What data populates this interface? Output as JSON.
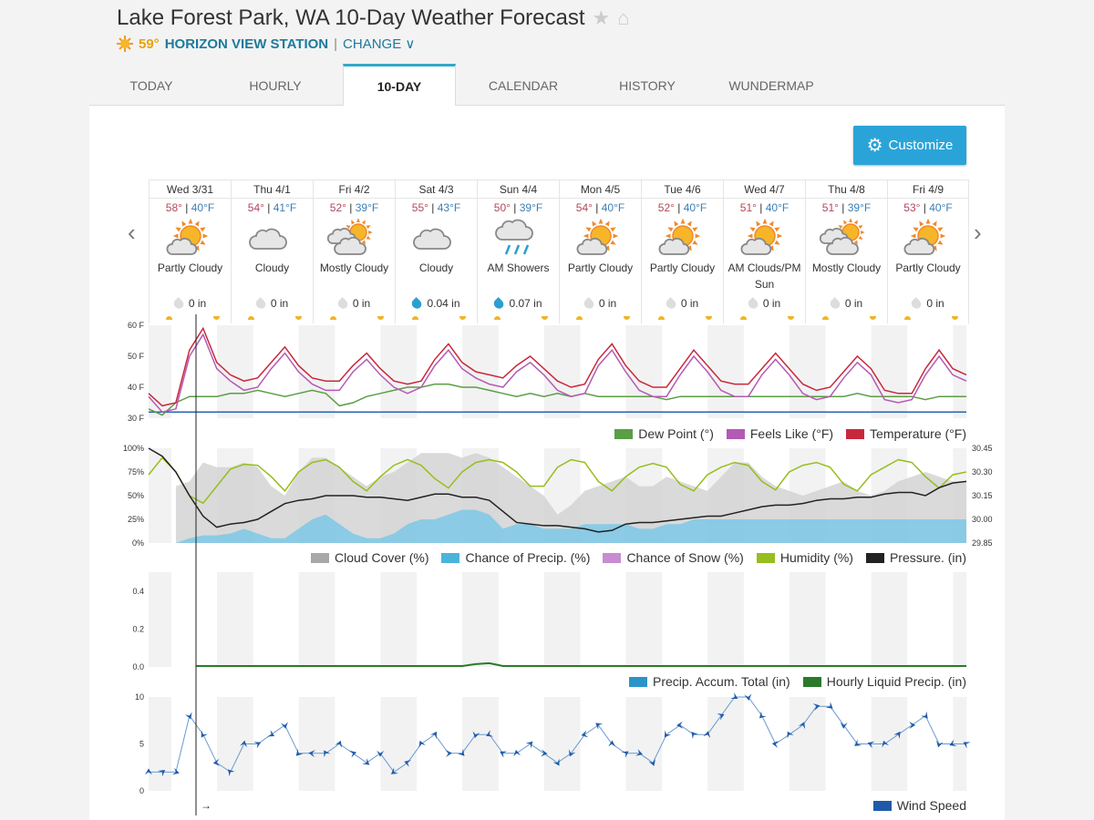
{
  "header": {
    "title": "Lake Forest Park, WA 10-Day Weather Forecast",
    "current_temp": "59°",
    "station": "HORIZON VIEW STATION",
    "separator": "|",
    "change": "CHANGE"
  },
  "tabs": [
    {
      "label": "TODAY"
    },
    {
      "label": "HOURLY"
    },
    {
      "label": "10-DAY",
      "active": true
    },
    {
      "label": "CALENDAR"
    },
    {
      "label": "HISTORY"
    },
    {
      "label": "WUNDERMAP"
    }
  ],
  "customize_label": "Customize",
  "days": [
    {
      "name": "Wed 3/31",
      "hi": "58°",
      "lo": "40°F",
      "icon": "partly-cloudy",
      "cond": "Partly Cloudy",
      "precip": "0 in",
      "wet": false
    },
    {
      "name": "Thu 4/1",
      "hi": "54°",
      "lo": "41°F",
      "icon": "cloudy",
      "cond": "Cloudy",
      "precip": "0 in",
      "wet": false
    },
    {
      "name": "Fri 4/2",
      "hi": "52°",
      "lo": "39°F",
      "icon": "mostly-cloudy",
      "cond": "Mostly Cloudy",
      "precip": "0 in",
      "wet": false
    },
    {
      "name": "Sat 4/3",
      "hi": "55°",
      "lo": "43°F",
      "icon": "cloudy",
      "cond": "Cloudy",
      "precip": "0.04 in",
      "wet": true
    },
    {
      "name": "Sun 4/4",
      "hi": "50°",
      "lo": "39°F",
      "icon": "rain",
      "cond": "AM Showers",
      "precip": "0.07 in",
      "wet": true
    },
    {
      "name": "Mon 4/5",
      "hi": "54°",
      "lo": "40°F",
      "icon": "partly-cloudy",
      "cond": "Partly Cloudy",
      "precip": "0 in",
      "wet": false
    },
    {
      "name": "Tue 4/6",
      "hi": "52°",
      "lo": "40°F",
      "icon": "partly-cloudy",
      "cond": "Partly Cloudy",
      "precip": "0 in",
      "wet": false
    },
    {
      "name": "Wed 4/7",
      "hi": "51°",
      "lo": "40°F",
      "icon": "partly-cloudy",
      "cond": "AM Clouds/PM Sun",
      "precip": "0 in",
      "wet": false
    },
    {
      "name": "Thu 4/8",
      "hi": "51°",
      "lo": "39°F",
      "icon": "mostly-cloudy",
      "cond": "Mostly Cloudy",
      "precip": "0 in",
      "wet": false
    },
    {
      "name": "Fri 4/9",
      "hi": "53°",
      "lo": "40°F",
      "icon": "partly-cloudy",
      "cond": "Partly Cloudy",
      "precip": "0 in",
      "wet": false
    }
  ],
  "colors": {
    "temperature": "#c8283c",
    "feels_like": "#b45ab4",
    "dew_point": "#5a9e46",
    "freezing": "#2a64b0",
    "cloud": "#c8c8c8",
    "precip": "#4ab4dc",
    "snow": "#c88cd2",
    "humidity": "#96be1e",
    "pressure": "#222222",
    "accum": "#2a94c8",
    "liquid": "#2a7a2a",
    "wind": "#1f5aa8"
  },
  "chart_data": [
    {
      "type": "line",
      "id": "temp",
      "ylim": [
        30,
        60
      ],
      "yticks": [
        "60 F",
        "50 F",
        "40 F",
        "30 F"
      ],
      "ytick_values": [
        60,
        50,
        40,
        30
      ],
      "points_per_day": 6,
      "series": [
        {
          "name": "Temperature (°F)",
          "values": [
            38,
            34,
            35,
            52,
            59,
            48,
            44,
            42,
            43,
            48,
            53,
            47,
            43,
            42,
            42,
            47,
            51,
            46,
            42,
            41,
            42,
            49,
            54,
            48,
            45,
            44,
            43,
            47,
            50,
            46,
            42,
            40,
            41,
            49,
            54,
            47,
            42,
            40,
            40,
            46,
            52,
            47,
            42,
            41,
            41,
            46,
            51,
            46,
            41,
            39,
            40,
            45,
            50,
            46,
            39,
            38,
            38,
            46,
            52,
            46,
            44
          ]
        },
        {
          "name": "Feels Like (°F)",
          "values": [
            37,
            32,
            33,
            50,
            57,
            46,
            42,
            39,
            40,
            46,
            51,
            45,
            41,
            39,
            39,
            45,
            49,
            44,
            40,
            38,
            40,
            47,
            52,
            46,
            43,
            41,
            40,
            45,
            48,
            44,
            39,
            37,
            38,
            47,
            52,
            45,
            39,
            37,
            37,
            44,
            50,
            45,
            39,
            37,
            37,
            44,
            49,
            44,
            38,
            36,
            37,
            43,
            48,
            44,
            36,
            35,
            36,
            44,
            50,
            44,
            42
          ]
        },
        {
          "name": "Dew Point (°)",
          "values": [
            33,
            31,
            35,
            37,
            37,
            37,
            38,
            38,
            39,
            38,
            37,
            38,
            39,
            38,
            34,
            35,
            37,
            38,
            39,
            40,
            40,
            41,
            41,
            40,
            40,
            39,
            38,
            37,
            38,
            37,
            38,
            37,
            38,
            37,
            37,
            37,
            37,
            37,
            36,
            37,
            37,
            37,
            37,
            37,
            37,
            37,
            37,
            37,
            37,
            37,
            37,
            37,
            38,
            37,
            37,
            37,
            37,
            36,
            37,
            37,
            37
          ]
        },
        {
          "name": "Freezing",
          "values": [
            32,
            32
          ]
        }
      ]
    },
    {
      "type": "area+line",
      "id": "atmo",
      "ylim": [
        0,
        100
      ],
      "yticks": [
        "100%",
        "75%",
        "50%",
        "25%",
        "0%"
      ],
      "y2lim": [
        29.85,
        30.45
      ],
      "y2ticks": [
        "30.45",
        "30.30",
        "30.15",
        "30.00",
        "29.85"
      ],
      "points_per_day": 6,
      "series": [
        {
          "name": "Cloud Cover (%)",
          "values": [
            0,
            0,
            60,
            65,
            85,
            80,
            80,
            85,
            80,
            60,
            50,
            75,
            90,
            90,
            80,
            70,
            60,
            70,
            75,
            85,
            95,
            95,
            95,
            90,
            95,
            90,
            80,
            70,
            60,
            50,
            30,
            40,
            55,
            60,
            65,
            70,
            60,
            60,
            70,
            65,
            60,
            55,
            70,
            85,
            85,
            70,
            60,
            55,
            50,
            55,
            60,
            65,
            55,
            50,
            55,
            65,
            70,
            75,
            70,
            65,
            65
          ]
        },
        {
          "name": "Chance of Precip. (%)",
          "values": [
            0,
            0,
            0,
            5,
            8,
            8,
            10,
            15,
            10,
            5,
            5,
            15,
            25,
            30,
            20,
            10,
            5,
            5,
            10,
            20,
            25,
            25,
            30,
            35,
            35,
            30,
            15,
            20,
            20,
            15,
            15,
            15,
            20,
            20,
            20,
            20,
            15,
            15,
            20,
            20,
            25,
            25,
            25,
            25,
            25,
            25,
            25,
            25,
            25,
            25,
            25,
            25,
            25,
            25,
            25,
            25,
            25,
            25,
            25,
            25,
            25
          ]
        },
        {
          "name": "Chance of Snow (%)",
          "values": [
            0
          ]
        },
        {
          "name": "Humidity (%)",
          "values": [
            72,
            90,
            75,
            50,
            42,
            60,
            78,
            83,
            82,
            70,
            55,
            75,
            85,
            88,
            80,
            65,
            55,
            70,
            82,
            88,
            82,
            68,
            58,
            75,
            85,
            88,
            85,
            75,
            60,
            60,
            80,
            88,
            85,
            65,
            55,
            70,
            80,
            84,
            80,
            62,
            55,
            72,
            80,
            85,
            82,
            65,
            56,
            75,
            82,
            85,
            80,
            62,
            55,
            72,
            80,
            88,
            85,
            70,
            58,
            72,
            75
          ]
        },
        {
          "name": "Pressure. (in)",
          "axis": "right",
          "values": [
            30.45,
            30.4,
            30.3,
            30.15,
            30.02,
            29.95,
            29.97,
            29.98,
            30.0,
            30.05,
            30.1,
            30.12,
            30.13,
            30.15,
            30.15,
            30.15,
            30.14,
            30.14,
            30.13,
            30.12,
            30.14,
            30.16,
            30.16,
            30.14,
            30.14,
            30.12,
            30.05,
            29.98,
            29.97,
            29.96,
            29.96,
            29.95,
            29.94,
            29.92,
            29.93,
            29.97,
            29.98,
            29.98,
            29.99,
            30.0,
            30.01,
            30.02,
            30.02,
            30.04,
            30.06,
            30.08,
            30.09,
            30.09,
            30.1,
            30.12,
            30.13,
            30.13,
            30.14,
            30.14,
            30.16,
            30.17,
            30.17,
            30.15,
            30.2,
            30.23,
            30.24
          ]
        }
      ]
    },
    {
      "type": "line",
      "id": "precip",
      "ylim": [
        0,
        0.5
      ],
      "yticks": [
        "0.4",
        "0.2",
        "0.0"
      ],
      "ytick_values": [
        0.4,
        0.2,
        0
      ],
      "points_per_day": 6,
      "series": [
        {
          "name": "Precip. Accum. Total (in)",
          "values": [
            0,
            0
          ]
        },
        {
          "name": "Hourly Liquid Precip. (in)",
          "values": [
            0,
            0,
            0,
            0,
            0,
            0,
            0,
            0,
            0,
            0,
            0,
            0,
            0,
            0,
            0,
            0,
            0,
            0,
            0,
            0,
            0,
            0,
            0,
            0,
            0.01,
            0.015,
            0,
            0,
            0,
            0,
            0,
            0,
            0,
            0,
            0,
            0,
            0,
            0,
            0,
            0,
            0,
            0,
            0,
            0,
            0,
            0,
            0,
            0,
            0,
            0,
            0,
            0,
            0,
            0,
            0,
            0,
            0,
            0,
            0,
            0,
            0
          ]
        }
      ]
    },
    {
      "type": "line",
      "id": "wind",
      "ylim": [
        0,
        10
      ],
      "yticks": [
        "10",
        "5",
        "0"
      ],
      "ytick_values": [
        10,
        5,
        0
      ],
      "points_per_day": 6,
      "series": [
        {
          "name": "Wind Speed",
          "values": [
            2,
            2,
            2,
            8,
            6,
            3,
            2,
            5,
            5,
            6,
            7,
            4,
            4,
            4,
            5,
            4,
            3,
            4,
            2,
            3,
            5,
            6,
            4,
            4,
            6,
            6,
            4,
            4,
            5,
            4,
            3,
            4,
            6,
            7,
            5,
            4,
            4,
            3,
            6,
            7,
            6,
            6,
            8,
            10,
            10,
            8,
            5,
            6,
            7,
            9,
            9,
            7,
            5,
            5,
            5,
            6,
            7,
            8,
            5,
            5,
            5
          ]
        }
      ]
    }
  ]
}
